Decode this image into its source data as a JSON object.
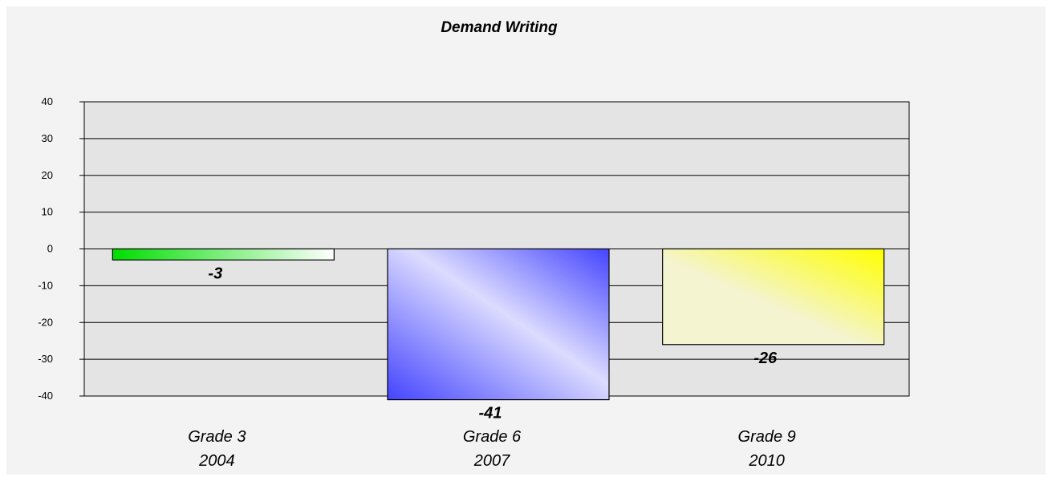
{
  "chart_data": {
    "type": "bar",
    "title": "Demand Writing",
    "categories": [
      [
        "Grade 3",
        "2004"
      ],
      [
        "Grade 6",
        "2007"
      ],
      [
        "Grade 9",
        "2010"
      ]
    ],
    "values": [
      -3,
      -41,
      -26
    ],
    "value_labels": [
      "-3",
      "-41",
      "-26"
    ],
    "ylim": [
      -40,
      40
    ],
    "yticks": [
      40,
      30,
      20,
      10,
      0,
      -10,
      -20,
      -30,
      -40
    ],
    "grid": true,
    "xlabel": "",
    "ylabel": "",
    "colors": [
      [
        "#00dd00",
        "#ffffff"
      ],
      [
        "#4444ff",
        "#dcdcff"
      ],
      [
        "#ffff00",
        "#f4f4d0"
      ]
    ],
    "plot_background": "#e4e4e4"
  }
}
